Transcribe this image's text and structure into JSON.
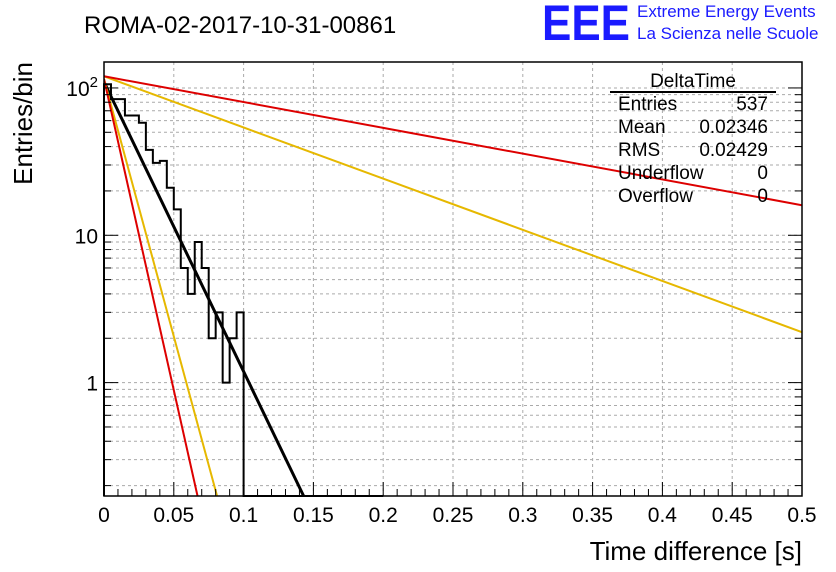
{
  "title": "ROMA-02-2017-10-31-00861",
  "logo": {
    "text": "EEE",
    "line1": "Extreme Energy Events",
    "line2": "La Scienza nelle Scuole"
  },
  "stats": {
    "name": "DeltaTime",
    "rows": [
      {
        "label": "Entries",
        "value": "537"
      },
      {
        "label": "Mean",
        "value": "0.02346"
      },
      {
        "label": "RMS",
        "value": "0.02429"
      },
      {
        "label": "Underflow",
        "value": "0"
      },
      {
        "label": "Overflow",
        "value": "0"
      }
    ]
  },
  "colors": {
    "histogram": "#000000",
    "fit": "#000000",
    "bound_inner": "#e6b800",
    "bound_outer": "#dd0000",
    "grid": "#aaaaaa",
    "logo": "#1a1aff"
  },
  "chart_data": {
    "type": "histogram",
    "title": "ROMA-02-2017-10-31-00861",
    "xlabel": "Time difference [s]",
    "ylabel": "Entries/bin",
    "xlim": [
      0,
      0.5
    ],
    "ylim": [
      0.17,
      150
    ],
    "yscale": "log",
    "grid": true,
    "legend_position": "top-right",
    "x_ticks": [
      0,
      0.05,
      0.1,
      0.15,
      0.2,
      0.25,
      0.3,
      0.35,
      0.4,
      0.45,
      0.5
    ],
    "x_tick_labels": [
      "0",
      "0.05",
      "0.1",
      "0.15",
      "0.2",
      "0.25",
      "0.3",
      "0.35",
      "0.4",
      "0.45",
      "0.5"
    ],
    "y_ticks": [
      1,
      10,
      100
    ],
    "y_tick_labels": [
      "1",
      "10",
      "10^2"
    ],
    "bin_width": 0.005,
    "bin_edges_start": 0,
    "bin_counts": [
      106,
      84,
      84,
      65,
      65,
      58,
      38,
      31,
      32,
      21,
      15,
      6,
      4,
      9,
      6,
      2,
      3,
      1,
      2,
      3,
      0,
      0,
      0,
      0,
      0,
      0,
      0,
      0,
      0,
      0,
      0,
      0,
      0,
      0,
      0,
      0,
      0,
      0,
      0,
      0
    ],
    "series": [
      {
        "kind": "fit",
        "x": [
          0,
          0.143
        ],
        "y": [
          110,
          0.17
        ]
      },
      {
        "kind": "bound",
        "x": [
          0,
          0.5
        ],
        "y": [
          120,
          2.2
        ]
      },
      {
        "kind": "bound",
        "x": [
          0,
          0.5
        ],
        "y": [
          120,
          16
        ]
      },
      {
        "kind": "bound",
        "x": [
          0,
          0.081
        ],
        "y": [
          115,
          0.17
        ]
      },
      {
        "kind": "bound",
        "x": [
          0,
          0.067
        ],
        "y": [
          115,
          0.17
        ]
      }
    ]
  }
}
